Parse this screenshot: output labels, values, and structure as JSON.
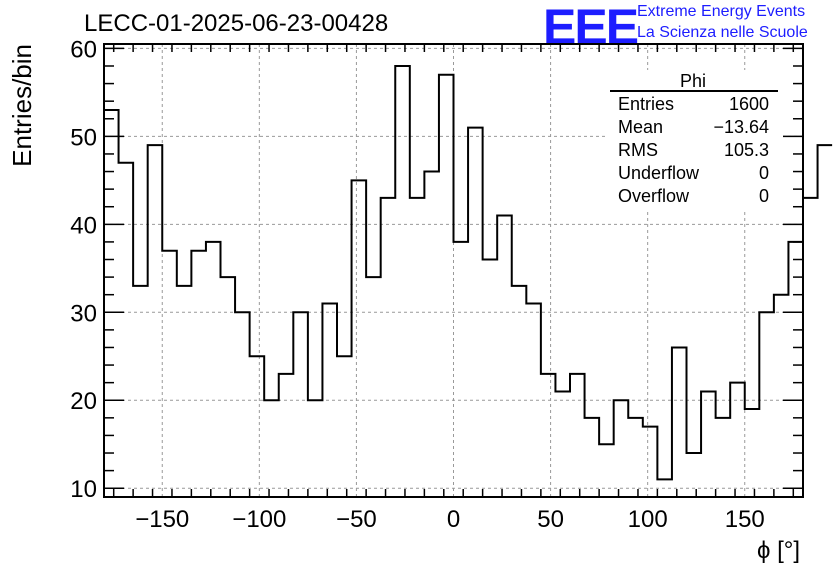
{
  "header": {
    "title": "LECC-01-2025-06-23-00428",
    "logo_text": "EEE",
    "logo_line1": "Extreme Energy Events",
    "logo_line2": "La Scienza nelle Scuole"
  },
  "colors": {
    "logo": "#1d1dff",
    "hist": "#000000",
    "grid": "#999999"
  },
  "chart_data": {
    "type": "bar",
    "style": "step-histogram",
    "title": "LECC-01-2025-06-23-00428",
    "xlabel": "ϕ [°]",
    "ylabel": "Entries/bin",
    "xlim": [
      -180,
      180
    ],
    "ylim": [
      9,
      60.5
    ],
    "bin_edges_start": -180,
    "bin_width": 7.5,
    "values": [
      53,
      47,
      33,
      49,
      37,
      33,
      37,
      38,
      34,
      30,
      25,
      20,
      23,
      30,
      20,
      31,
      25,
      45,
      34,
      43,
      58,
      43,
      46,
      57,
      38,
      51,
      36,
      41,
      33,
      31,
      23,
      21,
      23,
      18,
      15,
      20,
      18,
      17,
      11,
      26,
      14,
      21,
      18,
      22,
      19,
      30,
      32,
      38,
      43,
      49
    ],
    "x_ticks": [
      -150,
      -100,
      -50,
      0,
      50,
      100,
      150
    ],
    "x_tick_labels": [
      "−150",
      "−100",
      "−50",
      "0",
      "50",
      "100",
      "150"
    ],
    "y_ticks": [
      10,
      20,
      30,
      40,
      50,
      60
    ],
    "y_tick_labels": [
      "10",
      "20",
      "30",
      "40",
      "50",
      "60"
    ],
    "grid": true,
    "stats": {
      "title": "Phi",
      "rows": [
        {
          "label": "Entries",
          "value": "1600"
        },
        {
          "label": "Mean",
          "value": "−13.64"
        },
        {
          "label": "RMS",
          "value": "105.3"
        },
        {
          "label": "Underflow",
          "value": "0"
        },
        {
          "label": "Overflow",
          "value": "0"
        }
      ]
    }
  }
}
